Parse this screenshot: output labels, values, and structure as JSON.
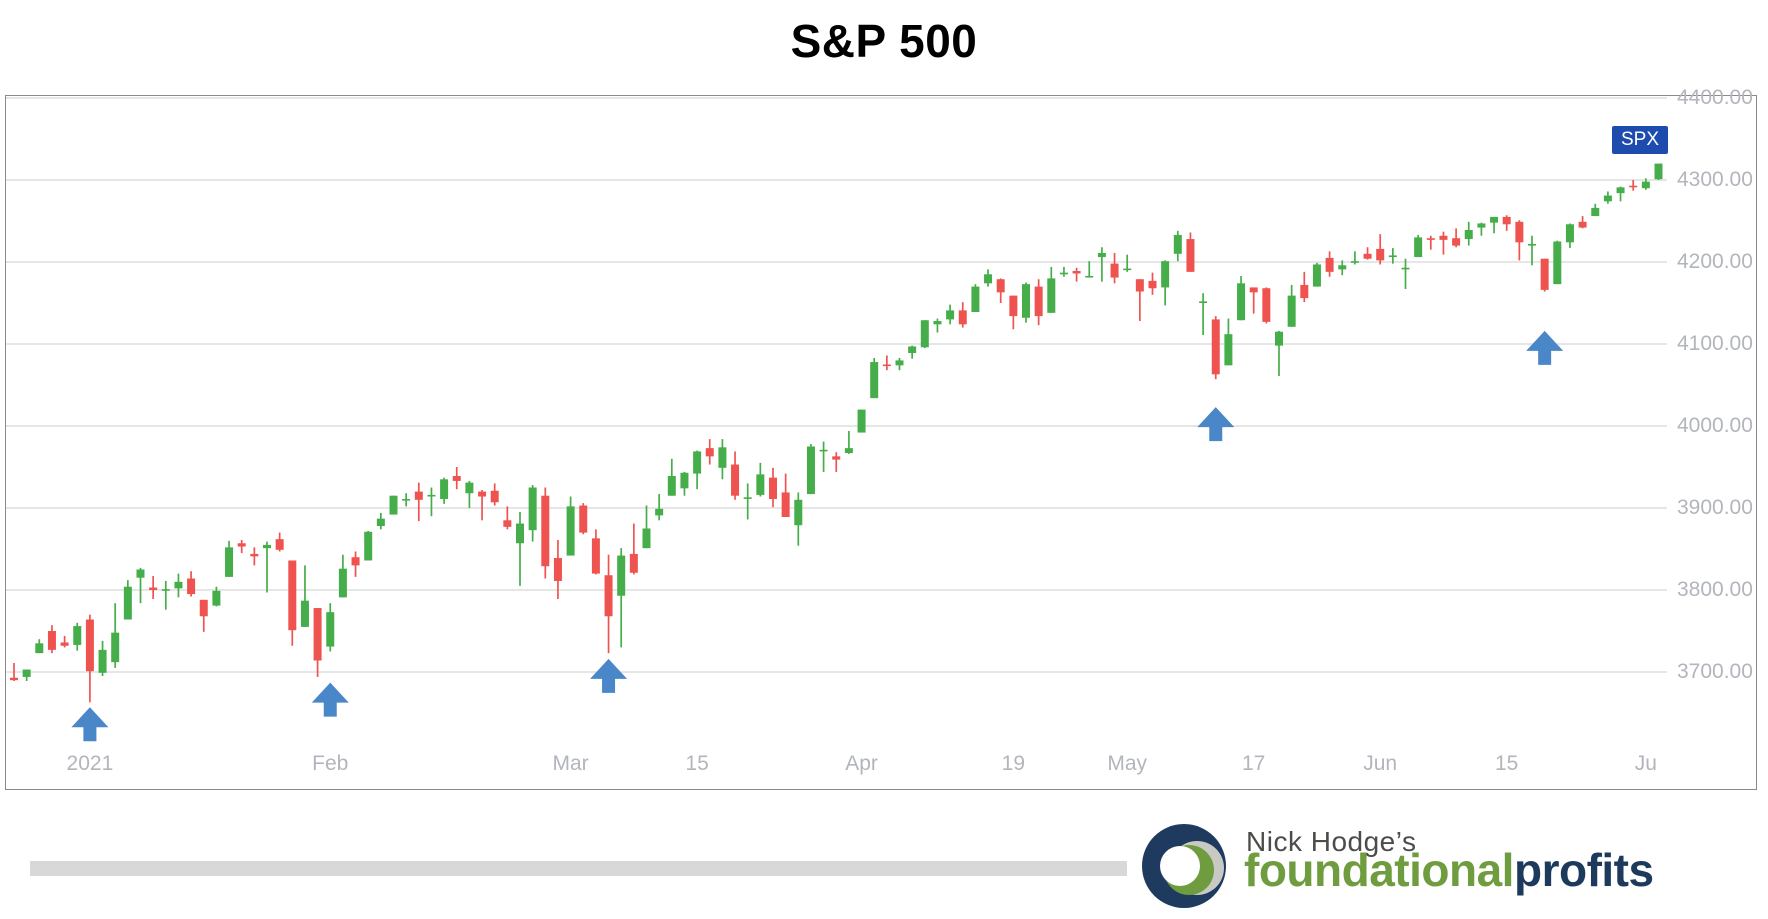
{
  "title": "S&P 500",
  "symbol_badge": "SPX",
  "colors": {
    "up_candle": "#45ad49",
    "down_candle": "#ef5350",
    "arrow_blue": "#4a87c9",
    "badge_navy": "#1d4cae",
    "gridline": "#d8d8d8",
    "axis_text": "#b2b5bc"
  },
  "chart_data": {
    "type": "candlestick",
    "title": "S&P 500",
    "symbol": "SPX",
    "period": "daily",
    "legend_position": "top-right",
    "grid": true,
    "y_axis": {
      "side": "right",
      "min": 3640,
      "max": 4410,
      "tick_interval": 100,
      "ticks": [
        {
          "label": "4400.00",
          "value": 4400
        },
        {
          "label": "4300.00",
          "value": 4300
        },
        {
          "label": "4200.00",
          "value": 4200
        },
        {
          "label": "4100.00",
          "value": 4100
        },
        {
          "label": "4000.00",
          "value": 4000
        },
        {
          "label": "3900.00",
          "value": 3900
        },
        {
          "label": "3800.00",
          "value": 3800
        },
        {
          "label": "3700.00",
          "value": 3700
        }
      ]
    },
    "x_axis": {
      "ticks": [
        {
          "label": "2021",
          "day_index": 6
        },
        {
          "label": "Feb",
          "day_index": 25
        },
        {
          "label": "Mar",
          "day_index": 44
        },
        {
          "label": "15",
          "day_index": 54
        },
        {
          "label": "Apr",
          "day_index": 67
        },
        {
          "label": "19",
          "day_index": 79
        },
        {
          "label": "May",
          "day_index": 88
        },
        {
          "label": "17",
          "day_index": 98
        },
        {
          "label": "Jun",
          "day_index": 108
        },
        {
          "label": "15",
          "day_index": 118
        },
        {
          "label": "Ju",
          "day_index": 129
        }
      ]
    },
    "candles_format": [
      "open",
      "high",
      "low",
      "close"
    ],
    "candles": [
      [
        3693,
        3711,
        3689,
        3690
      ],
      [
        3694,
        3703,
        3689,
        3703
      ],
      [
        3723,
        3740,
        3723,
        3735
      ],
      [
        3750,
        3757,
        3723,
        3727
      ],
      [
        3736,
        3744,
        3730,
        3732
      ],
      [
        3733,
        3760,
        3726,
        3756
      ],
      [
        3764,
        3770,
        3663,
        3701
      ],
      [
        3699,
        3738,
        3695,
        3727
      ],
      [
        3712,
        3784,
        3705,
        3748
      ],
      [
        3764,
        3812,
        3764,
        3804
      ],
      [
        3815,
        3827,
        3784,
        3825
      ],
      [
        3803,
        3817,
        3789,
        3800
      ],
      [
        3801,
        3811,
        3776,
        3801
      ],
      [
        3802,
        3820,
        3791,
        3810
      ],
      [
        3814,
        3823,
        3792,
        3795
      ],
      [
        3788,
        3788,
        3749,
        3768
      ],
      [
        3781,
        3804,
        3780,
        3799
      ],
      [
        3816,
        3860,
        3816,
        3852
      ],
      [
        3857,
        3861,
        3845,
        3853
      ],
      [
        3844,
        3852,
        3830,
        3841
      ],
      [
        3851,
        3859,
        3797,
        3855
      ],
      [
        3862,
        3870,
        3847,
        3849
      ],
      [
        3836,
        3836,
        3732,
        3751
      ],
      [
        3755,
        3830,
        3755,
        3787
      ],
      [
        3778,
        3778,
        3694,
        3714
      ],
      [
        3731,
        3784,
        3725,
        3773
      ],
      [
        3791,
        3843,
        3791,
        3826
      ],
      [
        3840,
        3847,
        3816,
        3830
      ],
      [
        3836,
        3872,
        3836,
        3871
      ],
      [
        3878,
        3894,
        3874,
        3887
      ],
      [
        3892,
        3915,
        3892,
        3915
      ],
      [
        3910,
        3918,
        3902,
        3911
      ],
      [
        3920,
        3931,
        3884,
        3910
      ],
      [
        3916,
        3925,
        3890,
        3916
      ],
      [
        3911,
        3937,
        3905,
        3935
      ],
      [
        3939,
        3950,
        3923,
        3933
      ],
      [
        3918,
        3933,
        3900,
        3931
      ],
      [
        3920,
        3922,
        3885,
        3914
      ],
      [
        3921,
        3930,
        3903,
        3907
      ],
      [
        3885,
        3902,
        3874,
        3877
      ],
      [
        3857,
        3895,
        3805,
        3881
      ],
      [
        3873,
        3928,
        3859,
        3925
      ],
      [
        3915,
        3925,
        3814,
        3829
      ],
      [
        3839,
        3861,
        3789,
        3811
      ],
      [
        3842,
        3914,
        3842,
        3902
      ],
      [
        3903,
        3906,
        3868,
        3870
      ],
      [
        3863,
        3874,
        3819,
        3820
      ],
      [
        3818,
        3843,
        3723,
        3768
      ],
      [
        3793,
        3851,
        3730,
        3842
      ],
      [
        3844,
        3881,
        3819,
        3821
      ],
      [
        3851,
        3903,
        3851,
        3875
      ],
      [
        3891,
        3917,
        3885,
        3899
      ],
      [
        3915,
        3960,
        3915,
        3939
      ],
      [
        3924,
        3944,
        3915,
        3943
      ],
      [
        3942,
        3970,
        3923,
        3969
      ],
      [
        3973,
        3984,
        3953,
        3963
      ],
      [
        3949,
        3984,
        3935,
        3974
      ],
      [
        3953,
        3969,
        3910,
        3915
      ],
      [
        3913,
        3930,
        3886,
        3913
      ],
      [
        3916,
        3955,
        3914,
        3941
      ],
      [
        3937,
        3949,
        3901,
        3911
      ],
      [
        3919,
        3942,
        3889,
        3889
      ],
      [
        3879,
        3919,
        3854,
        3910
      ],
      [
        3917,
        3978,
        3917,
        3975
      ],
      [
        3969,
        3981,
        3944,
        3971
      ],
      [
        3963,
        3968,
        3944,
        3959
      ],
      [
        3967,
        3994,
        3966,
        3973
      ],
      [
        3992,
        4020,
        3992,
        4020
      ],
      [
        4034,
        4083,
        4034,
        4078
      ],
      [
        4075,
        4086,
        4068,
        4074
      ],
      [
        4074,
        4083,
        4068,
        4080
      ],
      [
        4089,
        4098,
        4082,
        4097
      ],
      [
        4096,
        4129,
        4095,
        4129
      ],
      [
        4124,
        4131,
        4114,
        4128
      ],
      [
        4130,
        4148,
        4124,
        4141
      ],
      [
        4141,
        4151,
        4120,
        4124
      ],
      [
        4139,
        4173,
        4139,
        4170
      ],
      [
        4174,
        4191,
        4170,
        4185
      ],
      [
        4179,
        4180,
        4150,
        4163
      ],
      [
        4159,
        4159,
        4118,
        4134
      ],
      [
        4132,
        4175,
        4126,
        4173
      ],
      [
        4170,
        4179,
        4123,
        4134
      ],
      [
        4138,
        4194,
        4138,
        4180
      ],
      [
        4185,
        4194,
        4182,
        4187
      ],
      [
        4189,
        4193,
        4176,
        4186
      ],
      [
        4183,
        4201,
        4181,
        4183
      ],
      [
        4206,
        4218,
        4176,
        4211
      ],
      [
        4198,
        4211,
        4174,
        4181
      ],
      [
        4191,
        4209,
        4188,
        4192
      ],
      [
        4179,
        4179,
        4128,
        4164
      ],
      [
        4177,
        4187,
        4160,
        4168
      ],
      [
        4169,
        4202,
        4147,
        4201
      ],
      [
        4210,
        4238,
        4201,
        4233
      ],
      [
        4228,
        4236,
        4188,
        4188
      ],
      [
        4150,
        4162,
        4111,
        4152
      ],
      [
        4130,
        4134,
        4057,
        4063
      ],
      [
        4074,
        4131,
        4074,
        4112
      ],
      [
        4129,
        4183,
        4129,
        4174
      ],
      [
        4169,
        4169,
        4137,
        4163
      ],
      [
        4168,
        4169,
        4125,
        4127
      ],
      [
        4098,
        4116,
        4061,
        4115
      ],
      [
        4121,
        4172,
        4121,
        4159
      ],
      [
        4172,
        4188,
        4151,
        4156
      ],
      [
        4170,
        4199,
        4170,
        4197
      ],
      [
        4205,
        4213,
        4182,
        4188
      ],
      [
        4191,
        4202,
        4184,
        4196
      ],
      [
        4201,
        4213,
        4197,
        4201
      ],
      [
        4210,
        4218,
        4203,
        4204
      ],
      [
        4216,
        4234,
        4197,
        4202
      ],
      [
        4206,
        4217,
        4198,
        4208
      ],
      [
        4191,
        4204,
        4167,
        4193
      ],
      [
        4206,
        4233,
        4206,
        4230
      ],
      [
        4229,
        4232,
        4215,
        4227
      ],
      [
        4232,
        4237,
        4209,
        4227
      ],
      [
        4229,
        4241,
        4218,
        4220
      ],
      [
        4228,
        4249,
        4220,
        4239
      ],
      [
        4242,
        4248,
        4232,
        4247
      ],
      [
        4248,
        4255,
        4235,
        4255
      ],
      [
        4255,
        4257,
        4238,
        4246
      ],
      [
        4249,
        4251,
        4202,
        4224
      ],
      [
        4220,
        4232,
        4196,
        4222
      ],
      [
        4204,
        4204,
        4164,
        4166
      ],
      [
        4173,
        4226,
        4173,
        4225
      ],
      [
        4224,
        4247,
        4217,
        4246
      ],
      [
        4249,
        4256,
        4241,
        4242
      ],
      [
        4256,
        4271,
        4256,
        4266
      ],
      [
        4274,
        4286,
        4271,
        4281
      ],
      [
        4284,
        4292,
        4274,
        4291
      ],
      [
        4293,
        4300,
        4287,
        4292
      ],
      [
        4290,
        4302,
        4288,
        4298
      ],
      [
        4301,
        4320,
        4300,
        4320
      ]
    ],
    "annotations": {
      "arrows_up": [
        {
          "day_index": 6,
          "tip_price": 3657
        },
        {
          "day_index": 25,
          "tip_price": 3687
        },
        {
          "day_index": 47,
          "tip_price": 3716
        },
        {
          "day_index": 95,
          "tip_price": 4023
        },
        {
          "day_index": 121,
          "tip_price": 4116
        }
      ]
    }
  },
  "branding": {
    "owner": "Nick Hodge’s",
    "word_green": "foundational",
    "word_navy": "profits"
  }
}
